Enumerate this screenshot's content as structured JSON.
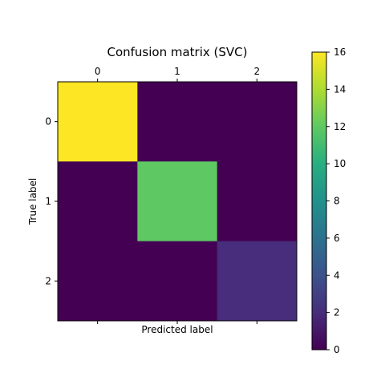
{
  "chart_data": {
    "type": "heatmap",
    "title": "Confusion matrix (SVC)",
    "xlabel": "Predicted label",
    "ylabel": "True label",
    "x_ticks": [
      "0",
      "1",
      "2"
    ],
    "y_ticks": [
      "0",
      "1",
      "2"
    ],
    "matrix": [
      [
        16,
        0,
        0
      ],
      [
        0,
        12,
        0
      ],
      [
        0,
        0,
        2
      ]
    ],
    "colormap": "viridis",
    "colorbar": {
      "range": [
        0,
        16
      ],
      "ticks": [
        "0",
        "2",
        "4",
        "6",
        "8",
        "10",
        "12",
        "14",
        "16"
      ]
    }
  }
}
